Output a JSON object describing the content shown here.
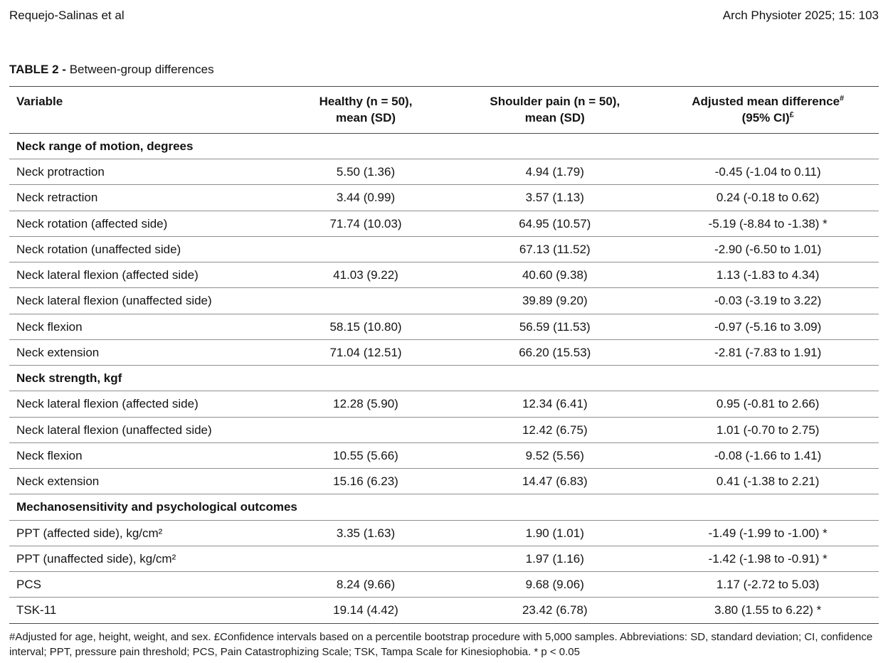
{
  "header": {
    "left": "Requejo-Salinas et al",
    "right": "Arch Physioter 2025; 15: 103"
  },
  "table": {
    "label": "TABLE 2 -",
    "title": " Between-group differences",
    "columns": {
      "variable": "Variable",
      "healthy_line1": "Healthy (n = 50),",
      "healthy_line2": "mean (SD)",
      "pain_line1": "Shoulder pain (n = 50),",
      "pain_line2": "mean (SD)",
      "adjusted_line1": "Adjusted mean difference",
      "adjusted_sup1": "#",
      "adjusted_line2": "(95% CI)",
      "adjusted_sup2": "£"
    },
    "sections": [
      {
        "header": "Neck range of motion, degrees",
        "rows": [
          {
            "variable": "Neck protraction",
            "healthy": "5.50 (1.36)",
            "pain": "4.94 (1.79)",
            "diff": "-0.45 (-1.04 to 0.11)"
          },
          {
            "variable": "Neck retraction",
            "healthy": "3.44 (0.99)",
            "pain": "3.57 (1.13)",
            "diff": "0.24 (-0.18 to 0.62)"
          },
          {
            "variable": "Neck rotation (affected side)",
            "healthy": "71.74 (10.03)",
            "pain": "64.95 (10.57)",
            "diff": "-5.19 (-8.84 to -1.38) *"
          },
          {
            "variable": "Neck rotation (unaffected side)",
            "healthy": "",
            "pain": "67.13 (11.52)",
            "diff": "-2.90 (-6.50 to 1.01)"
          },
          {
            "variable": "Neck lateral flexion (affected side)",
            "healthy": "41.03 (9.22)",
            "pain": "40.60 (9.38)",
            "diff": "1.13 (-1.83 to 4.34)"
          },
          {
            "variable": "Neck lateral flexion (unaffected side)",
            "healthy": "",
            "pain": "39.89 (9.20)",
            "diff": "-0.03 (-3.19 to 3.22)"
          },
          {
            "variable": "Neck flexion",
            "healthy": "58.15 (10.80)",
            "pain": "56.59 (11.53)",
            "diff": "-0.97 (-5.16 to 3.09)"
          },
          {
            "variable": "Neck extension",
            "healthy": "71.04 (12.51)",
            "pain": "66.20 (15.53)",
            "diff": "-2.81 (-7.83 to 1.91)"
          }
        ]
      },
      {
        "header": "Neck strength, kgf",
        "rows": [
          {
            "variable": "Neck lateral flexion (affected side)",
            "healthy": "12.28 (5.90)",
            "pain": "12.34 (6.41)",
            "diff": "0.95 (-0.81 to 2.66)"
          },
          {
            "variable": "Neck lateral flexion (unaffected side)",
            "healthy": "",
            "pain": "12.42 (6.75)",
            "diff": "1.01 (-0.70 to 2.75)"
          },
          {
            "variable": "Neck flexion",
            "healthy": "10.55 (5.66)",
            "pain": "9.52 (5.56)",
            "diff": "-0.08 (-1.66 to 1.41)"
          },
          {
            "variable": "Neck extension",
            "healthy": "15.16 (6.23)",
            "pain": "14.47 (6.83)",
            "diff": "0.41 (-1.38 to 2.21)"
          }
        ]
      },
      {
        "header": "Mechanosensitivity and psychological outcomes",
        "rows": [
          {
            "variable": "PPT (affected side), kg/cm²",
            "healthy": "3.35 (1.63)",
            "pain": "1.90 (1.01)",
            "diff": "-1.49 (-1.99 to -1.00) *"
          },
          {
            "variable": "PPT (unaffected side), kg/cm²",
            "healthy": "",
            "pain": "1.97 (1.16)",
            "diff": "-1.42 (-1.98 to -0.91) *"
          },
          {
            "variable": "PCS",
            "healthy": "8.24 (9.66)",
            "pain": "9.68 (9.06)",
            "diff": "1.17 (-2.72 to 5.03)"
          },
          {
            "variable": "TSK-11",
            "healthy": "19.14 (4.42)",
            "pain": "23.42 (6.78)",
            "diff": "3.80 (1.55 to 6.22) *"
          }
        ]
      }
    ]
  },
  "footnote": "#Adjusted for age, height, weight, and sex. £Confidence intervals based on a percentile bootstrap procedure with 5,000 samples. Abbreviations: SD, standard deviation; CI, confidence interval; PPT, pressure pain threshold; PCS, Pain Catastrophizing Scale; TSK, Tampa Scale for Kinesiophobia. * p < 0.05"
}
